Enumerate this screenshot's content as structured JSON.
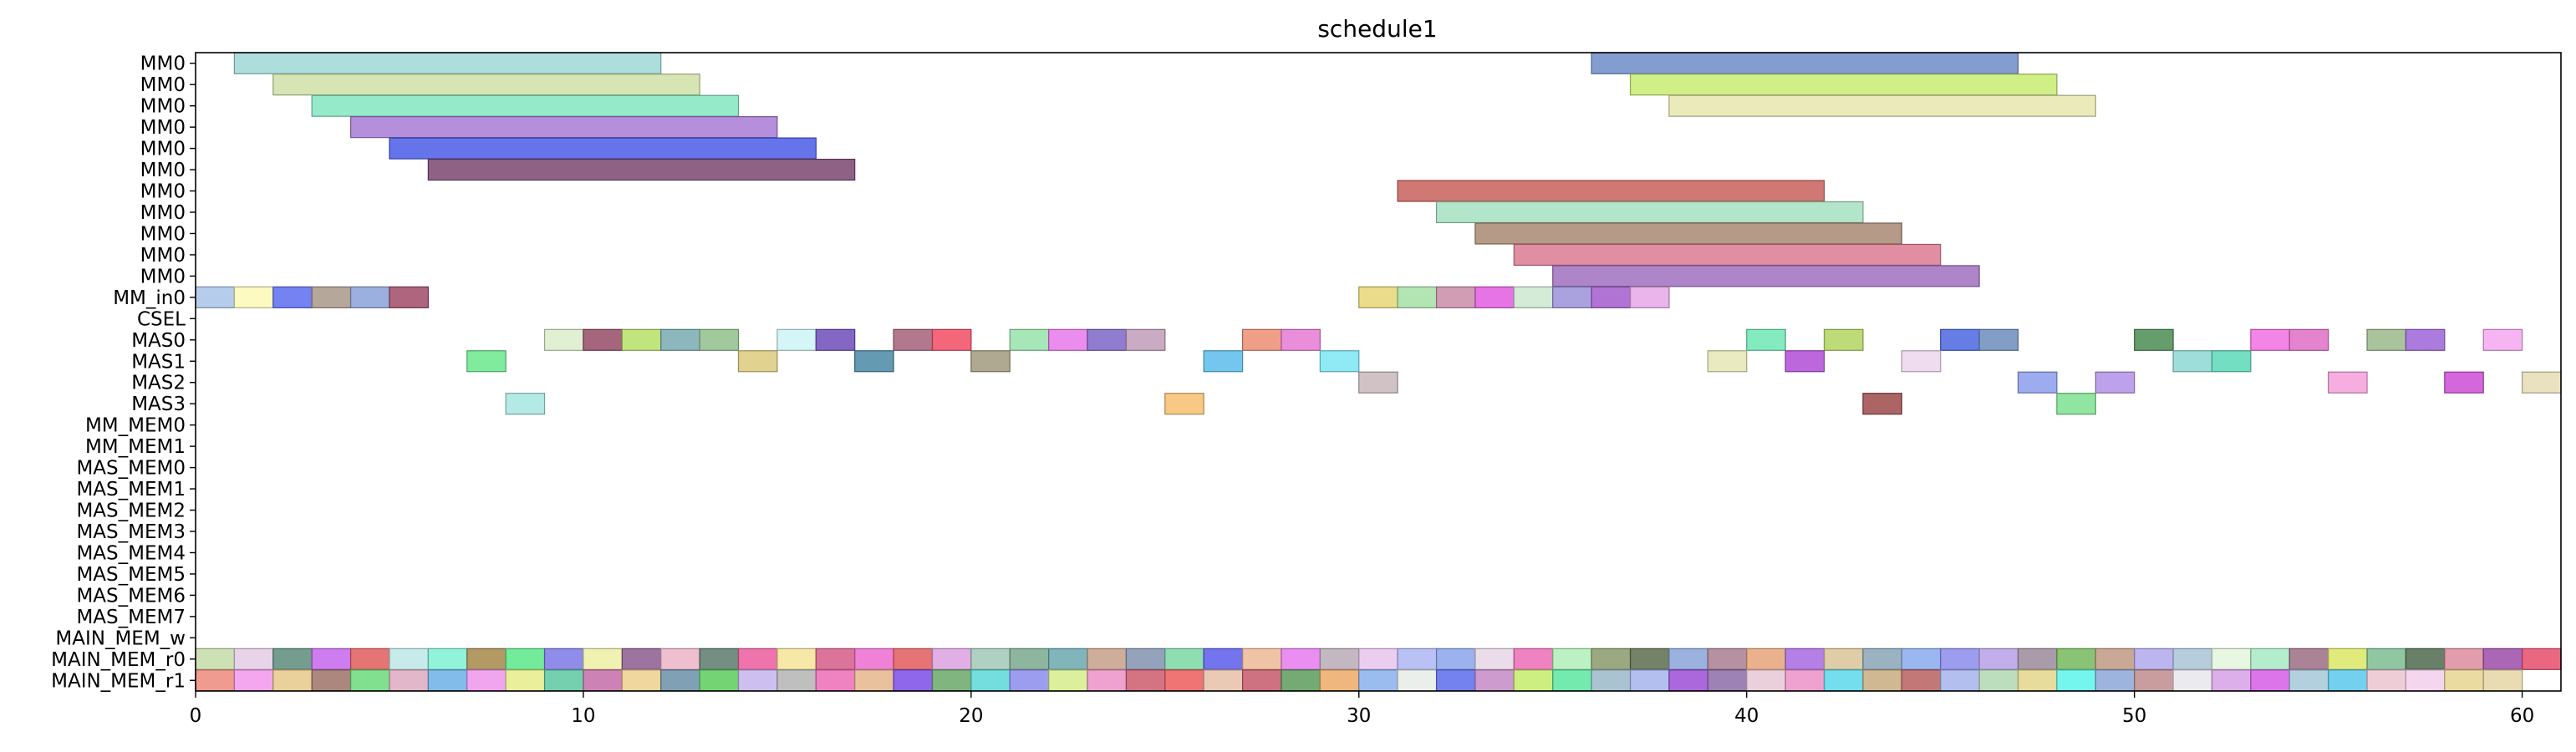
{
  "chart_data": {
    "type": "gantt",
    "title": "schedule1",
    "xlabel": "",
    "ylabel": "",
    "xlim": [
      0,
      61
    ],
    "x_ticks": [
      0,
      10,
      20,
      30,
      40,
      50,
      60
    ],
    "grid": false,
    "legend": "none",
    "rows": [
      "MM0",
      "MM0",
      "MM0",
      "MM0",
      "MM0",
      "MM0",
      "MM0",
      "MM0",
      "MM0",
      "MM0",
      "MM0",
      "MM_in0",
      "CSEL",
      "MAS0",
      "MAS1",
      "MAS2",
      "MAS3",
      "MM_MEM0",
      "MM_MEM1",
      "MAS_MEM0",
      "MAS_MEM1",
      "MAS_MEM2",
      "MAS_MEM3",
      "MAS_MEM4",
      "MAS_MEM5",
      "MAS_MEM6",
      "MAS_MEM7",
      "MAIN_MEM_w",
      "MAIN_MEM_r0",
      "MAIN_MEM_r1"
    ],
    "bars": [
      {
        "row": 0,
        "start": 1,
        "end": 12,
        "color": "#9fd8d6"
      },
      {
        "row": 0,
        "start": 36,
        "end": 47,
        "color": "#6f8cc8"
      },
      {
        "row": 1,
        "start": 2,
        "end": 13,
        "color": "#cfe0a6"
      },
      {
        "row": 1,
        "start": 37,
        "end": 48,
        "color": "#c8ec72"
      },
      {
        "row": 2,
        "start": 3,
        "end": 14,
        "color": "#82e8c0"
      },
      {
        "row": 2,
        "start": 38,
        "end": 49,
        "color": "#e6e6ae"
      },
      {
        "row": 3,
        "start": 4,
        "end": 15,
        "color": "#a87ad6"
      },
      {
        "row": 4,
        "start": 5,
        "end": 16,
        "color": "#4a5ce6"
      },
      {
        "row": 5,
        "start": 6,
        "end": 17,
        "color": "#7a4670"
      },
      {
        "row": 6,
        "start": 31,
        "end": 42,
        "color": "#c8605c"
      },
      {
        "row": 7,
        "start": 32,
        "end": 43,
        "color": "#a6e0c2"
      },
      {
        "row": 8,
        "start": 33,
        "end": 44,
        "color": "#a88a72"
      },
      {
        "row": 9,
        "start": 34,
        "end": 45,
        "color": "#dc7a92"
      },
      {
        "row": 10,
        "start": 35,
        "end": 46,
        "color": "#a070c0"
      },
      {
        "row": 11,
        "start": 0,
        "end": 1,
        "color": "#a8c4e6"
      },
      {
        "row": 11,
        "start": 1,
        "end": 2,
        "color": "#fcf8b6"
      },
      {
        "row": 11,
        "start": 2,
        "end": 3,
        "color": "#5c6cf0"
      },
      {
        "row": 11,
        "start": 3,
        "end": 4,
        "color": "#a89888"
      },
      {
        "row": 11,
        "start": 4,
        "end": 5,
        "color": "#8aa2d8"
      },
      {
        "row": 11,
        "start": 5,
        "end": 6,
        "color": "#a04a66"
      },
      {
        "row": 11,
        "start": 30,
        "end": 31,
        "color": "#e6d676"
      },
      {
        "row": 11,
        "start": 31,
        "end": 32,
        "color": "#a6e0a6"
      },
      {
        "row": 11,
        "start": 32,
        "end": 33,
        "color": "#c88ca8"
      },
      {
        "row": 11,
        "start": 33,
        "end": 34,
        "color": "#e25ce0"
      },
      {
        "row": 11,
        "start": 34,
        "end": 35,
        "color": "#cce8d0"
      },
      {
        "row": 11,
        "start": 35,
        "end": 36,
        "color": "#9a92d8"
      },
      {
        "row": 11,
        "start": 36,
        "end": 37,
        "color": "#a25ccc"
      },
      {
        "row": 11,
        "start": 37,
        "end": 38,
        "color": "#e6a8e6"
      },
      {
        "row": 13,
        "start": 9,
        "end": 10,
        "color": "#dcecca"
      },
      {
        "row": 13,
        "start": 10,
        "end": 11,
        "color": "#944a66"
      },
      {
        "row": 13,
        "start": 11,
        "end": 12,
        "color": "#b6e066"
      },
      {
        "row": 13,
        "start": 12,
        "end": 13,
        "color": "#78aab2"
      },
      {
        "row": 13,
        "start": 13,
        "end": 14,
        "color": "#90c08c"
      },
      {
        "row": 13,
        "start": 15,
        "end": 16,
        "color": "#cef4f4"
      },
      {
        "row": 13,
        "start": 16,
        "end": 17,
        "color": "#6e4cb8"
      },
      {
        "row": 13,
        "start": 18,
        "end": 19,
        "color": "#a4627a"
      },
      {
        "row": 13,
        "start": 19,
        "end": 20,
        "color": "#f24c64"
      },
      {
        "row": 13,
        "start": 21,
        "end": 22,
        "color": "#96e2aa"
      },
      {
        "row": 13,
        "start": 22,
        "end": 23,
        "color": "#e878ec"
      },
      {
        "row": 13,
        "start": 23,
        "end": 24,
        "color": "#7c66c8"
      },
      {
        "row": 13,
        "start": 24,
        "end": 25,
        "color": "#c09cb8"
      },
      {
        "row": 13,
        "start": 27,
        "end": 28,
        "color": "#ec8e72"
      },
      {
        "row": 13,
        "start": 28,
        "end": 29,
        "color": "#e67ad6"
      },
      {
        "row": 13,
        "start": 40,
        "end": 41,
        "color": "#6ee6b4"
      },
      {
        "row": 13,
        "start": 42,
        "end": 43,
        "color": "#b2d660"
      },
      {
        "row": 13,
        "start": 45,
        "end": 46,
        "color": "#4a66e0"
      },
      {
        "row": 13,
        "start": 46,
        "end": 47,
        "color": "#6c8cbc"
      },
      {
        "row": 13,
        "start": 50,
        "end": 51,
        "color": "#4a8c52"
      },
      {
        "row": 13,
        "start": 53,
        "end": 54,
        "color": "#f070e0"
      },
      {
        "row": 13,
        "start": 54,
        "end": 55,
        "color": "#e06ec6"
      },
      {
        "row": 13,
        "start": 56,
        "end": 57,
        "color": "#9ab88c"
      },
      {
        "row": 13,
        "start": 57,
        "end": 58,
        "color": "#9e64d8"
      },
      {
        "row": 13,
        "start": 59,
        "end": 60,
        "color": "#f4a8f0"
      },
      {
        "row": 14,
        "start": 7,
        "end": 8,
        "color": "#6ae68c"
      },
      {
        "row": 14,
        "start": 14,
        "end": 15,
        "color": "#dcca7c"
      },
      {
        "row": 14,
        "start": 17,
        "end": 18,
        "color": "#4a88a6"
      },
      {
        "row": 14,
        "start": 20,
        "end": 21,
        "color": "#a09a7c"
      },
      {
        "row": 14,
        "start": 26,
        "end": 27,
        "color": "#5cbcec"
      },
      {
        "row": 14,
        "start": 29,
        "end": 30,
        "color": "#7ce6f4"
      },
      {
        "row": 14,
        "start": 39,
        "end": 40,
        "color": "#e6e6b6"
      },
      {
        "row": 14,
        "start": 41,
        "end": 42,
        "color": "#b24cd6"
      },
      {
        "row": 14,
        "start": 44,
        "end": 45,
        "color": "#ecd6ec"
      },
      {
        "row": 14,
        "start": 51,
        "end": 52,
        "color": "#8cd8d4"
      },
      {
        "row": 14,
        "start": 52,
        "end": 53,
        "color": "#5cd8b8"
      },
      {
        "row": 15,
        "start": 30,
        "end": 31,
        "color": "#c8b8bc"
      },
      {
        "row": 15,
        "start": 47,
        "end": 48,
        "color": "#8c9cec"
      },
      {
        "row": 15,
        "start": 49,
        "end": 50,
        "color": "#b290e6"
      },
      {
        "row": 15,
        "start": 55,
        "end": 56,
        "color": "#f4a0dc"
      },
      {
        "row": 15,
        "start": 58,
        "end": 59,
        "color": "#cc4cd6"
      },
      {
        "row": 15,
        "start": 60,
        "end": 61,
        "color": "#e6dcb6"
      },
      {
        "row": 16,
        "start": 8,
        "end": 9,
        "color": "#a6e6e0"
      },
      {
        "row": 16,
        "start": 25,
        "end": 26,
        "color": "#f6c070"
      },
      {
        "row": 16,
        "start": 43,
        "end": 44,
        "color": "#9c4a4a"
      },
      {
        "row": 16,
        "start": 48,
        "end": 49,
        "color": "#7ce090"
      }
    ],
    "mem_r0_colors": [
      "#c6dca8",
      "#e4cce4",
      "#5c8c7c",
      "#c466ec",
      "#e25c5c",
      "#bce8e6",
      "#7ef2d4",
      "#a6884a",
      "#5ce68a",
      "#7c78e6",
      "#eef0a4",
      "#8c5c8e",
      "#ecb4c8",
      "#5c7a6c",
      "#ec5c9c",
      "#f4e496",
      "#d65c88",
      "#ec6cd0",
      "#e25c5c",
      "#dca0e0",
      "#a2c8b6",
      "#7aa88c",
      "#6aa8b0",
      "#c6a088",
      "#8292b0",
      "#7ad8a4",
      "#5c5cec",
      "#ecba96",
      "#e67af0",
      "#b8aab6",
      "#e8c4ec",
      "#aeb6f2",
      "#8aa4ec",
      "#e6d6e4",
      "#ec6cb6",
      "#b0f0b8",
      "#8a9a6c",
      "#5c6c4c",
      "#8aa4d8",
      "#a87e92",
      "#e6a478",
      "#a86ae2",
      "#d8c496",
      "#8aa6b6",
      "#8aaaf0",
      "#8c8cec",
      "#b6a0e6",
      "#9a8a9a",
      "#76b85c",
      "#c09a84",
      "#b0a8ec",
      "#aac4d8",
      "#e4f6dc",
      "#a6eac6",
      "#9c6c84",
      "#dce866",
      "#7cbc92",
      "#4c6a4c",
      "#dc8c9c",
      "#9c4ca8",
      "#e64c6c"
    ],
    "mem_r1_colors": [
      "#ec8a7c",
      "#f296ec",
      "#e6c888",
      "#9c7266",
      "#6ada7c",
      "#dcaac0",
      "#6cb0e6",
      "#ec96ec",
      "#e6ec8a",
      "#5cc8a0",
      "#c46ca8",
      "#ecd08c",
      "#6a90a8",
      "#5ccc5c",
      "#c4b4ec",
      "#b4b4b4",
      "#ec6cb6",
      "#e6b68c",
      "#7a4ce6",
      "#6aa86a",
      "#5cd8d8",
      "#8c8cec",
      "#d6ec8c",
      "#ec90c8",
      "#cc5c6c",
      "#ec5c5c",
      "#e6c0a8",
      "#c6586a",
      "#5c9c5c",
      "#ecaa66",
      "#8ab0ec",
      "#e6ece6",
      "#5c6cec",
      "#c48ac4",
      "#c4ec6c",
      "#5ce6a0",
      "#9ab8c8",
      "#a6b4ec",
      "#9c4cd6",
      "#8c6ca8",
      "#e6c8d4",
      "#ec90c8",
      "#5cd8ec",
      "#c8ac80",
      "#b86060",
      "#a6b4ec",
      "#b2d8b0",
      "#e4d68c",
      "#5cf4ec",
      "#8ca8d8",
      "#c08c8c",
      "#e6e6ec",
      "#d6a0e6",
      "#d65ce6",
      "#a6c8d8",
      "#5cc8ec",
      "#ecc4d0",
      "#f2d0ec",
      "#e6d690",
      "#e6d6a4"
    ]
  }
}
